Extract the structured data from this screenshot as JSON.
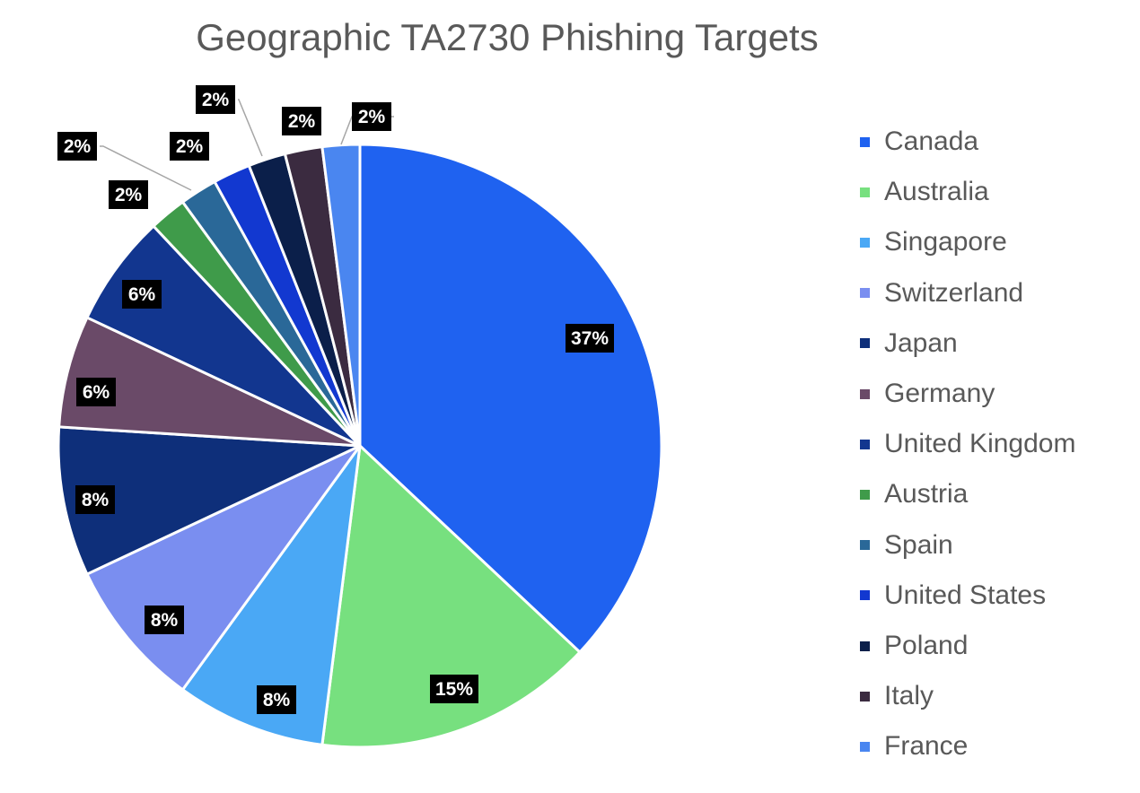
{
  "chart_data": {
    "type": "pie",
    "title": "Geographic TA2730 Phishing Targets",
    "categories": [
      "Canada",
      "Australia",
      "Singapore",
      "Switzerland",
      "Japan",
      "Germany",
      "United Kingdom",
      "Austria",
      "Spain",
      "United States",
      "Poland",
      "Italy",
      "France"
    ],
    "values": [
      37,
      15,
      8,
      8,
      8,
      6,
      6,
      2,
      2,
      2,
      2,
      2,
      2
    ],
    "data_labels": [
      "37%",
      "15%",
      "8%",
      "8%",
      "8%",
      "6%",
      "6%",
      "2%",
      "2%",
      "2%",
      "2%",
      "2%",
      "2%"
    ],
    "colors": [
      "#1f62f0",
      "#77e07f",
      "#4aa8f5",
      "#7a8ef0",
      "#0e2f7a",
      "#6a4a68",
      "#12368f",
      "#3f9b4a",
      "#2a6898",
      "#1238d0",
      "#0b1f4a",
      "#3b2b40",
      "#4a86f0"
    ],
    "legend_position": "right",
    "start_angle_deg": 0,
    "direction": "clockwise"
  }
}
